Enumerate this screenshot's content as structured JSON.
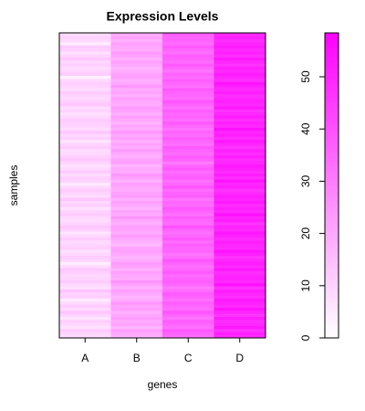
{
  "chart_data": {
    "type": "heatmap",
    "title": "Expression Levels",
    "xlabel": "genes",
    "ylabel": "samples",
    "categories": [
      "A",
      "B",
      "C",
      "D"
    ],
    "z": [
      [
        8,
        10,
        12,
        7,
        9,
        11,
        6,
        10,
        13,
        9,
        12,
        8,
        5,
        11,
        10,
        14,
        7,
        9,
        12,
        10,
        9,
        11,
        13,
        8,
        4,
        10,
        12,
        9,
        7,
        11,
        10,
        8,
        12,
        9,
        6,
        11,
        13,
        10,
        8,
        9,
        12,
        10,
        7,
        11,
        9,
        13,
        8,
        10,
        12,
        9,
        5,
        10,
        11,
        8,
        12,
        9,
        7,
        10,
        13,
        11,
        9,
        8,
        12,
        10,
        6,
        11,
        9,
        13,
        8,
        10,
        11,
        12,
        9,
        7,
        10,
        8,
        13,
        11,
        9,
        10,
        12,
        8,
        10,
        11,
        9,
        3,
        12,
        10,
        8,
        11,
        9,
        13,
        10,
        7,
        11,
        12,
        4,
        9,
        10,
        8
      ],
      [
        18,
        20,
        22,
        17,
        21,
        19,
        23,
        20,
        18,
        22,
        21,
        24,
        19,
        17,
        20,
        22,
        18,
        21,
        25,
        19,
        20,
        22,
        18,
        21,
        23,
        19,
        17,
        20,
        22,
        21,
        16,
        18,
        20,
        23,
        19,
        21,
        22,
        18,
        20,
        24,
        19,
        21,
        17,
        20,
        22,
        18,
        23,
        21,
        19,
        20,
        22,
        18,
        21,
        24,
        19,
        20,
        17,
        22,
        21,
        18,
        20,
        23,
        19,
        21,
        18,
        22,
        20,
        24,
        19,
        21,
        17,
        20,
        22,
        18,
        21,
        23,
        19,
        20,
        22,
        18,
        21,
        19,
        24,
        20,
        18,
        22,
        21,
        19,
        17,
        20,
        22,
        18,
        21,
        23,
        19,
        20,
        22,
        18,
        21,
        19
      ],
      [
        34,
        36,
        38,
        33,
        35,
        37,
        32,
        36,
        39,
        34,
        35,
        37,
        33,
        36,
        38,
        34,
        31,
        35,
        37,
        36,
        34,
        38,
        35,
        33,
        36,
        39,
        34,
        32,
        36,
        35,
        37,
        34,
        38,
        35,
        33,
        36,
        40,
        34,
        35,
        37,
        33,
        36,
        38,
        34,
        35,
        32,
        37,
        36,
        34,
        39,
        35,
        33,
        37,
        36,
        34,
        38,
        35,
        31,
        36,
        37,
        34,
        36,
        38,
        33,
        35,
        37,
        34,
        36,
        32,
        35,
        38,
        34,
        36,
        35,
        37,
        33,
        36,
        39,
        34,
        35,
        36,
        38,
        33,
        35,
        37,
        34,
        36,
        32,
        35,
        38,
        34,
        36,
        37,
        33,
        35,
        38,
        34,
        36,
        35,
        37
      ],
      [
        49,
        51,
        47,
        53,
        50,
        48,
        52,
        46,
        50,
        54,
        49,
        51,
        53,
        48,
        50,
        52,
        47,
        55,
        49,
        51,
        50,
        48,
        53,
        49,
        52,
        50,
        47,
        51,
        54,
        49,
        50,
        52,
        48,
        51,
        53,
        49,
        50,
        47,
        52,
        50,
        55,
        49,
        51,
        48,
        53,
        50,
        52,
        49,
        47,
        51,
        50,
        54,
        48,
        52,
        49,
        51,
        53,
        50,
        48,
        52,
        49,
        51,
        47,
        50,
        53,
        48,
        52,
        50,
        55,
        49,
        51,
        48,
        52,
        50,
        47,
        53,
        49,
        51,
        50,
        48,
        52,
        49,
        51,
        54,
        48,
        50,
        52,
        49,
        51,
        47,
        50,
        53,
        48,
        51,
        49,
        52,
        50,
        48,
        51,
        49
      ]
    ],
    "zlim": [
      0,
      58.4
    ],
    "zticks": [
      0,
      10,
      20,
      30,
      40,
      50
    ],
    "colors": [
      "#ffffff",
      "#ff00ff"
    ]
  }
}
